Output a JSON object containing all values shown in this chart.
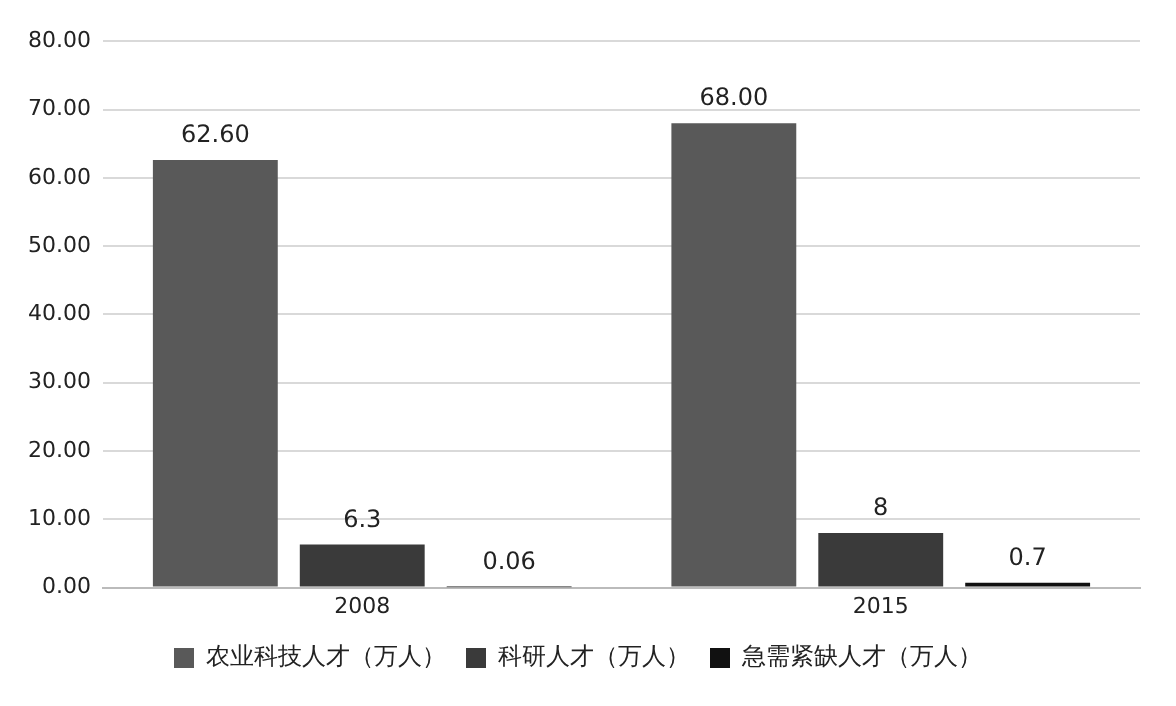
{
  "chart_data": {
    "type": "bar",
    "categories": [
      "2008",
      "2015"
    ],
    "series": [
      {
        "name": "农业科技人才（万人）",
        "color": "#595959",
        "values": [
          62.6,
          68.0
        ],
        "value_labels": [
          "62.60",
          "68.00"
        ]
      },
      {
        "name": "科研人才（万人）",
        "color": "#3a3a3a",
        "values": [
          6.3,
          8
        ],
        "value_labels": [
          "6.3",
          "8"
        ]
      },
      {
        "name": "急需紧缺人才（万人）",
        "color": "#111111",
        "values": [
          0.06,
          0.7
        ],
        "value_labels": [
          "0.06",
          "0.7"
        ]
      }
    ],
    "ylim": [
      0,
      80
    ],
    "yticks": [
      {
        "value": 0,
        "label": "0.00"
      },
      {
        "value": 10,
        "label": "10.00"
      },
      {
        "value": 20,
        "label": "20.00"
      },
      {
        "value": 30,
        "label": "30.00"
      },
      {
        "value": 40,
        "label": "40.00"
      },
      {
        "value": 50,
        "label": "50.00"
      },
      {
        "value": 60,
        "label": "60.00"
      },
      {
        "value": 70,
        "label": "70.00"
      },
      {
        "value": 80,
        "label": "80.00"
      }
    ],
    "grid": "y",
    "legend": "bottom"
  }
}
